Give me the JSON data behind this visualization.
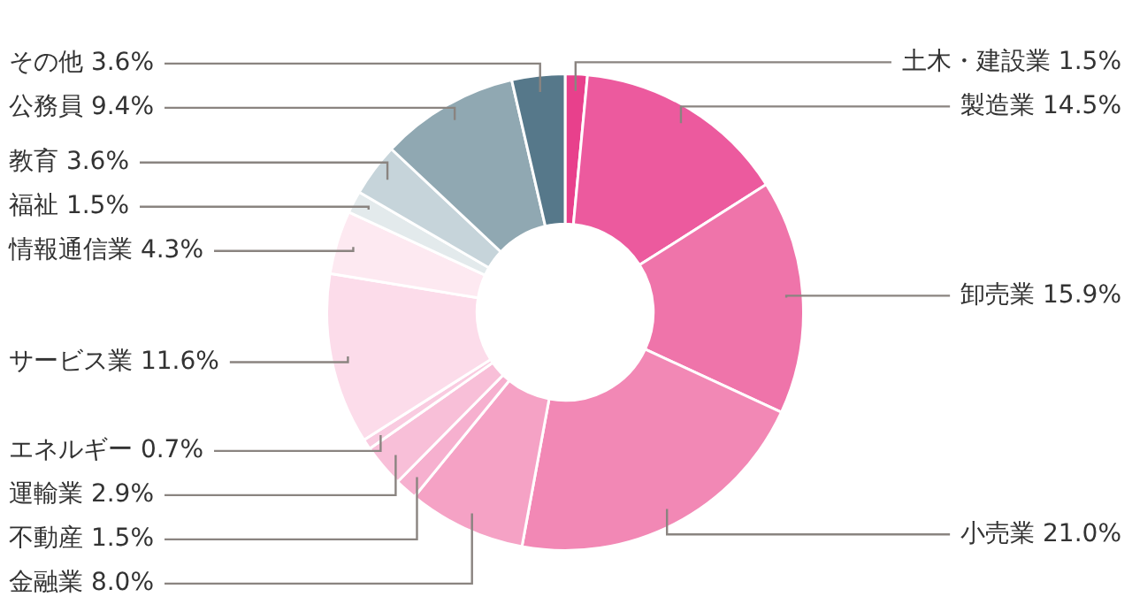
{
  "chart_data": {
    "type": "donut",
    "categories": [
      "土木・建設業",
      "製造業",
      "卸売業",
      "小売業",
      "金融業",
      "不動産",
      "運輸業",
      "エネルギー",
      "サービス業",
      "情報通信業",
      "福祉",
      "教育",
      "公務員",
      "その他"
    ],
    "values": [
      1.5,
      14.5,
      15.9,
      21.0,
      8.0,
      1.5,
      2.9,
      0.7,
      11.6,
      4.3,
      1.5,
      3.6,
      9.4,
      3.6
    ],
    "value_labels": [
      "1.5%",
      "14.5%",
      "15.9%",
      "21.0%",
      "8.0%",
      "1.5%",
      "2.9%",
      "0.7%",
      "11.6%",
      "4.3%",
      "1.5%",
      "3.6%",
      "9.4%",
      "3.6%"
    ],
    "colors": [
      "#e8408c",
      "#ec5a9e",
      "#ef74aa",
      "#f288b5",
      "#f5a2c5",
      "#f6b0cf",
      "#f8bfd8",
      "#f9cbe0",
      "#fcdcea",
      "#fde9f1",
      "#e3eaec",
      "#c6d4da",
      "#90a8b2",
      "#56788a"
    ],
    "legend": false
  }
}
